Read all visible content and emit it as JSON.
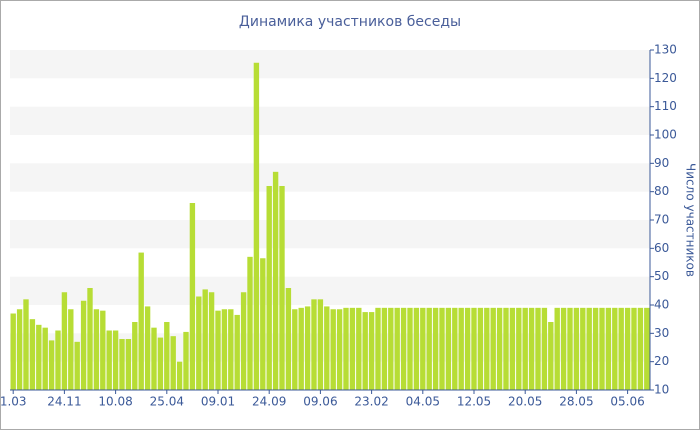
{
  "chart_data": {
    "type": "bar",
    "title": "Динамика участников беседы",
    "y_label": "Число участников",
    "categories": [
      "1.03",
      null,
      null,
      null,
      null,
      null,
      null,
      null,
      "24.11",
      null,
      null,
      null,
      null,
      null,
      null,
      null,
      "10.08",
      null,
      null,
      null,
      null,
      null,
      null,
      null,
      "25.04",
      null,
      null,
      null,
      null,
      null,
      null,
      null,
      "09.01",
      null,
      null,
      null,
      null,
      null,
      null,
      null,
      "24.09",
      null,
      null,
      null,
      null,
      null,
      null,
      null,
      "09.06",
      null,
      null,
      null,
      null,
      null,
      null,
      null,
      "23.02",
      null,
      null,
      null,
      null,
      null,
      null,
      null,
      "04.05",
      null,
      null,
      null,
      null,
      null,
      null,
      null,
      "12.05",
      null,
      null,
      null,
      null,
      null,
      null,
      null,
      "20.05",
      null,
      null,
      null,
      null,
      null,
      null,
      null,
      "28.05",
      null,
      null,
      null,
      null,
      null,
      null,
      null,
      "05.06",
      null,
      null,
      null
    ],
    "values": [
      37,
      38.5,
      42,
      35,
      33,
      32,
      27.5,
      31,
      44.5,
      38.5,
      27,
      41.5,
      46,
      38.5,
      38,
      31,
      31,
      28,
      28,
      34,
      58.5,
      39.5,
      32,
      28.5,
      34,
      29,
      20,
      30.5,
      76,
      43,
      45.5,
      44.5,
      38,
      38.5,
      38.5,
      36.5,
      44.5,
      57,
      125.5,
      56.5,
      82,
      87,
      82,
      46,
      38.5,
      39,
      39.5,
      42,
      42,
      39.5,
      38.5,
      38.5,
      39,
      39,
      39,
      37.5,
      37.5,
      39,
      39,
      39,
      39,
      39,
      39,
      39,
      39,
      39,
      39,
      39,
      39,
      39,
      39,
      39,
      39,
      39,
      39,
      39,
      39,
      39,
      39,
      39,
      39,
      39,
      39,
      39,
      34,
      39,
      39,
      39,
      39,
      39,
      39,
      39,
      39,
      39,
      39,
      39,
      39,
      39,
      39,
      39
    ],
    "color": "#b7dd35",
    "ylim": [
      10,
      130
    ],
    "yticks": [
      10,
      20,
      30,
      40,
      50,
      60,
      70,
      80,
      90,
      100,
      110,
      120,
      130
    ],
    "grid": true
  }
}
